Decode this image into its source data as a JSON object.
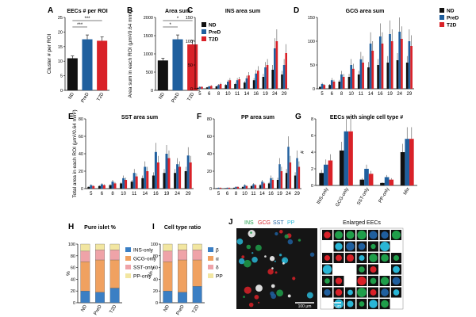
{
  "figure": {
    "colors": {
      "ND": "#111111",
      "PreD": "#1f5f9e",
      "T2D": "#d92128",
      "INS": "#1f9e4a",
      "GCG": "#d92128",
      "SST": "#1f5f9e",
      "PP": "#29b6d6"
    },
    "legend_main": [
      "ND",
      "PreD",
      "T2D"
    ]
  },
  "chart_data": [
    {
      "id": "A",
      "letter": "A",
      "type": "bar",
      "title": "EECs # per ROI",
      "ylabel": "Cluster # per ROI",
      "ylim": [
        0,
        25
      ],
      "yticks": [
        0,
        5,
        10,
        15,
        20,
        25
      ],
      "categories": [
        "ND",
        "PreD",
        "T2D"
      ],
      "values": [
        11,
        17.5,
        17
      ],
      "errors": [
        0.8,
        1.5,
        1.3
      ],
      "sig": [
        "***",
        "***"
      ]
    },
    {
      "id": "B",
      "letter": "B",
      "type": "bar",
      "title": "Area sum",
      "ylabel": "Area sum in each ROI (μm²/0.64 mm²)",
      "ylim": [
        0,
        2000
      ],
      "yticks": [
        0,
        500,
        1000,
        1500,
        2000
      ],
      "categories": [
        "ND",
        "PreD",
        "T2D"
      ],
      "values": [
        820,
        1400,
        1260
      ],
      "errors": [
        60,
        120,
        110
      ],
      "sig": [
        "*",
        "*"
      ]
    },
    {
      "id": "C",
      "letter": "C",
      "type": "bar",
      "title": "INS area sum",
      "ylim": [
        0,
        150
      ],
      "yticks": [
        0,
        50,
        100,
        150
      ],
      "categories": [
        "5",
        "6",
        "8",
        "10",
        "11",
        "14",
        "16",
        "19",
        "24",
        "29"
      ],
      "series": [
        {
          "name": "ND",
          "values": [
            2,
            3,
            5,
            8,
            10,
            13,
            18,
            25,
            40,
            30
          ]
        },
        {
          "name": "PreD",
          "values": [
            4,
            5,
            8,
            15,
            18,
            22,
            32,
            45,
            85,
            50
          ]
        },
        {
          "name": "T2D",
          "values": [
            4,
            6,
            10,
            18,
            20,
            28,
            38,
            50,
            100,
            75
          ]
        }
      ],
      "legend": [
        "ND",
        "PreD",
        "T2D"
      ]
    },
    {
      "id": "D",
      "letter": "D",
      "type": "bar",
      "title": "GCG area sum",
      "ylim": [
        0,
        150
      ],
      "yticks": [
        0,
        50,
        100,
        150
      ],
      "categories": [
        "5",
        "6",
        "8",
        "10",
        "11",
        "14",
        "16",
        "19",
        "24",
        "29"
      ],
      "series": [
        {
          "name": "ND",
          "values": [
            4,
            8,
            15,
            25,
            30,
            45,
            50,
            55,
            60,
            55
          ]
        },
        {
          "name": "PreD",
          "values": [
            10,
            18,
            30,
            50,
            62,
            95,
            110,
            115,
            120,
            100
          ]
        },
        {
          "name": "T2D",
          "values": [
            8,
            15,
            25,
            42,
            55,
            80,
            95,
            100,
            105,
            90
          ]
        }
      ]
    },
    {
      "id": "E",
      "letter": "E",
      "type": "bar",
      "title": "SST area sum",
      "ylabel": "Total area in each ROI (μm²/0.64 mm²)",
      "ylim": [
        0,
        80
      ],
      "yticks": [
        0,
        20,
        40,
        60,
        80
      ],
      "categories": [
        "5",
        "6",
        "8",
        "10",
        "11",
        "14",
        "16",
        "19",
        "24",
        "29"
      ],
      "series": [
        {
          "name": "ND",
          "values": [
            2,
            3,
            4,
            6,
            8,
            12,
            15,
            18,
            18,
            20
          ]
        },
        {
          "name": "PreD",
          "values": [
            4,
            5,
            8,
            12,
            18,
            25,
            42,
            40,
            28,
            38
          ]
        },
        {
          "name": "T2D",
          "values": [
            3,
            4,
            6,
            10,
            14,
            20,
            30,
            35,
            25,
            30
          ]
        }
      ]
    },
    {
      "id": "F",
      "letter": "F",
      "type": "bar",
      "title": "PP area sum",
      "ylim": [
        0,
        80
      ],
      "yticks": [
        0,
        20,
        40,
        60,
        80
      ],
      "categories": [
        "5",
        "6",
        "8",
        "10",
        "11",
        "14",
        "16",
        "19",
        "24",
        "29"
      ],
      "series": [
        {
          "name": "ND",
          "values": [
            0.5,
            0.5,
            1,
            2,
            3,
            4,
            6,
            10,
            18,
            15
          ]
        },
        {
          "name": "PreD",
          "values": [
            1,
            1,
            2,
            4,
            5,
            8,
            12,
            28,
            48,
            35
          ]
        },
        {
          "name": "T2D",
          "values": [
            1,
            1,
            2,
            3,
            4,
            6,
            10,
            20,
            30,
            25
          ]
        }
      ]
    },
    {
      "id": "G",
      "letter": "G",
      "type": "bar",
      "title": "EECs with single cell type #",
      "ylabel": "#",
      "ylim": [
        0,
        8
      ],
      "yticks": [
        0,
        2,
        4,
        6,
        8
      ],
      "categories": [
        "INS-only",
        "GCG-only",
        "SST-only",
        "PP-only",
        "Mix"
      ],
      "series": [
        {
          "name": "ND",
          "values": [
            1.5,
            4.2,
            0.7,
            0.3,
            4.0
          ]
        },
        {
          "name": "PreD",
          "values": [
            2.5,
            6.5,
            2.0,
            1.0,
            5.6
          ]
        },
        {
          "name": "T2D",
          "values": [
            3.0,
            6.5,
            1.4,
            0.7,
            5.6
          ]
        }
      ],
      "legend": [
        "ND",
        "PreD",
        "T2D"
      ]
    },
    {
      "id": "H",
      "letter": "H",
      "type": "stacked_bar",
      "title": "Pure islet %",
      "ylabel": "%",
      "ylim": [
        0,
        100
      ],
      "yticks": [
        0,
        20,
        40,
        60,
        80,
        100
      ],
      "categories": [
        "ND",
        "PreD",
        "T2D"
      ],
      "series": [
        {
          "name": "INS-only",
          "color": "#3b7fc4",
          "values": [
            20,
            18,
            25
          ]
        },
        {
          "name": "GCG-only",
          "color": "#f0a160",
          "values": [
            50,
            55,
            48
          ]
        },
        {
          "name": "SST-only",
          "color": "#efa3a8",
          "values": [
            18,
            17,
            17
          ]
        },
        {
          "name": "PP-only",
          "color": "#f2e6a1",
          "values": [
            12,
            10,
            10
          ]
        }
      ]
    },
    {
      "id": "I",
      "letter": "I",
      "type": "stacked_bar",
      "title": "Cell type ratio",
      "ylabel": "%",
      "ylim": [
        0,
        100
      ],
      "yticks": [
        0,
        20,
        40,
        60,
        80,
        100
      ],
      "categories": [
        "ND",
        "PreD",
        "T2D"
      ],
      "series": [
        {
          "name": "β",
          "color": "#3b7fc4",
          "values": [
            20,
            18,
            28
          ]
        },
        {
          "name": "α",
          "color": "#f0a160",
          "values": [
            50,
            55,
            45
          ]
        },
        {
          "name": "δ",
          "color": "#efa3a8",
          "values": [
            18,
            17,
            17
          ]
        },
        {
          "name": "PP",
          "color": "#f2e6a1",
          "values": [
            12,
            10,
            10
          ]
        }
      ]
    }
  ],
  "panel_j": {
    "letter": "J",
    "stain_labels": [
      {
        "text": "INS",
        "color": "#1f9e4a"
      },
      {
        "text": "GCG",
        "color": "#d92128"
      },
      {
        "text": "SST",
        "color": "#1f5f9e"
      },
      {
        "text": "PP",
        "color": "#29b6d6"
      }
    ],
    "scale_main": "100 μm",
    "enlarged_title": "Enlarged EECs",
    "scale_enlarged": "10 μm"
  }
}
